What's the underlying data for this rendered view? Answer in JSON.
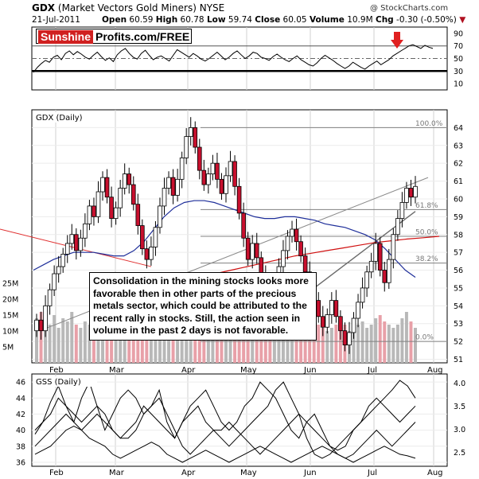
{
  "header": {
    "symbol": "GDX",
    "name": "(Market Vectors Gold Miners)",
    "exchange": "NYSE",
    "date": "21-Jul-2011",
    "source": "@ StockCharts.com",
    "open_label": "Open",
    "open": "60.59",
    "high_label": "High",
    "high": "60.78",
    "low_label": "Low",
    "low": "59.74",
    "close_label": "Close",
    "close": "60.05",
    "volume_label": "Volume",
    "volume": "10.9M",
    "chg_label": "Chg",
    "chg": "-0.30 (-0.50%)"
  },
  "logo": {
    "red_part": "Sunshine",
    "black_part": "Profits.com/FREE"
  },
  "annotation": "Consolidation in the mining stocks looks more favorable then in other parts of the precious metals sector, which could be attributed to the recent rally in stocks. Still, the action seen in volume in the past 2 days is not favorable.",
  "colors": {
    "up": "#ffffff",
    "down": "#c8102e",
    "ma50": "#1f2f9a",
    "ma200": "#d01010",
    "trend_red": "#e03030",
    "volume": "#b8b8b8",
    "volume_down": "#e8a0a8",
    "fib": "#808080"
  },
  "chart_data": [
    {
      "panel": "rsi",
      "type": "line",
      "ylim": [
        0,
        100
      ],
      "y_ticks": [
        10,
        30,
        50,
        70,
        90
      ],
      "reference_lines": [
        30,
        50,
        70
      ],
      "values": [
        28,
        36,
        42,
        47,
        44,
        52,
        55,
        48,
        58,
        62,
        56,
        61,
        57,
        52,
        49,
        55,
        60,
        53,
        47,
        51,
        45,
        56,
        62,
        66,
        58,
        52,
        49,
        58,
        63,
        55,
        48,
        52,
        54,
        50,
        46,
        55,
        64,
        60,
        56,
        52,
        58,
        54,
        49,
        46,
        50,
        55,
        60,
        54,
        48,
        52,
        58,
        62,
        56,
        50,
        54,
        60,
        58,
        52,
        50,
        47,
        53,
        57,
        52,
        48,
        45,
        50,
        54,
        48,
        44,
        40,
        38,
        43,
        50,
        55,
        51,
        47,
        42,
        38,
        34,
        38,
        44,
        40,
        36,
        33,
        38,
        42,
        46,
        40,
        44,
        48,
        54,
        58,
        62,
        66,
        70,
        72,
        69,
        66,
        71,
        68,
        66
      ]
    },
    {
      "panel": "price",
      "title": "GDX (Daily)",
      "type": "candlestick",
      "ylim": [
        50.8,
        65
      ],
      "y_ticks": [
        51,
        52,
        53,
        54,
        55,
        56,
        57,
        58,
        59,
        60,
        61,
        62,
        63,
        64
      ],
      "x_labels": [
        "Feb",
        "Mar",
        "Apr",
        "May",
        "Jun",
        "Jul",
        "Aug"
      ],
      "fib_levels": [
        {
          "label": "100.0%",
          "value": 64.0
        },
        {
          "label": "61.8%",
          "value": 59.4
        },
        {
          "label": "50.0%",
          "value": 57.9
        },
        {
          "label": "38.2%",
          "value": 56.4
        },
        {
          "label": "0.0%",
          "value": 52.0
        }
      ],
      "close": [
        53.2,
        52.6,
        54.0,
        54.9,
        55.8,
        56.2,
        56.9,
        57.5,
        58.0,
        57.1,
        57.8,
        58.6,
        59.6,
        59.0,
        60.4,
        61.2,
        60.1,
        58.9,
        59.5,
        60.6,
        61.4,
        60.8,
        59.7,
        58.5,
        57.2,
        56.6,
        57.3,
        58.4,
        59.6,
        60.6,
        61.2,
        60.2,
        61.1,
        62.3,
        63.5,
        64.0,
        62.9,
        61.6,
        60.8,
        61.4,
        62.0,
        61.1,
        60.3,
        61.3,
        62.1,
        60.7,
        59.2,
        57.8,
        56.6,
        57.5,
        56.7,
        55.8,
        55.1,
        54.6,
        55.4,
        56.2,
        57.1,
        57.9,
        58.3,
        57.6,
        56.8,
        55.9,
        55.1,
        54.3,
        53.4,
        52.8,
        53.5,
        54.3,
        53.4,
        52.6,
        51.8,
        52.5,
        53.3,
        54.2,
        55.0,
        55.9,
        56.5,
        57.5,
        56.0,
        55.3,
        56.6,
        58.0,
        58.9,
        59.8,
        60.6,
        60.1,
        60.7
      ],
      "ma50": [
        56.0,
        56.3,
        56.6,
        56.8,
        57.0,
        57.0,
        57.0,
        56.9,
        56.8,
        56.8,
        57.1,
        57.6,
        58.3,
        59.0,
        59.5,
        59.8,
        59.9,
        59.9,
        59.8,
        59.6,
        59.4,
        59.2,
        59.0,
        58.9,
        58.9,
        59.0,
        59.0,
        58.9,
        58.8,
        58.6,
        58.5,
        58.4,
        58.2,
        58.0,
        57.7,
        57.2,
        56.6,
        56.0,
        55.6
      ],
      "ma200": [
        55.0,
        55.2,
        55.4,
        55.6,
        55.8,
        56.0,
        56.2,
        56.4,
        56.6,
        56.8,
        56.95,
        57.1,
        57.25,
        57.4,
        57.55,
        57.65,
        57.75,
        57.82,
        57.9
      ],
      "volume_ylim": [
        0,
        30
      ],
      "volume_ticks": [
        {
          "label": "5M",
          "value": 5
        },
        {
          "label": "10M",
          "value": 10
        },
        {
          "label": "15M",
          "value": 15
        },
        {
          "label": "20M",
          "value": 20
        },
        {
          "label": "25M",
          "value": 25
        }
      ],
      "volume": [
        14,
        16,
        13,
        12,
        15,
        11,
        14,
        13,
        16,
        12,
        11,
        13,
        12,
        10,
        11,
        14,
        12,
        13,
        11,
        10,
        12,
        11,
        13,
        12,
        14,
        11,
        10,
        12,
        13,
        12,
        11,
        14,
        12,
        13,
        15,
        11,
        12,
        13,
        10,
        12,
        11,
        12,
        13,
        12,
        14,
        11,
        10,
        12,
        11,
        10,
        12,
        11,
        9,
        10,
        11,
        12,
        10,
        11,
        12,
        11,
        10,
        11,
        12,
        13,
        12,
        11,
        10,
        11,
        12,
        13,
        12,
        10,
        11,
        12,
        13,
        11,
        12,
        14,
        15,
        13,
        12,
        11,
        12,
        14,
        16,
        13,
        11
      ]
    },
    {
      "panel": "gss",
      "title": "GSS (Daily)",
      "type": "line",
      "ylim_left": [
        35.5,
        47
      ],
      "y_ticks_left": [
        36,
        38,
        40,
        42,
        44,
        46
      ],
      "ylim_right": [
        2.2,
        4.2
      ],
      "y_ticks_right": [
        2.5,
        3.0,
        3.5,
        4.0
      ],
      "series": [
        {
          "values": [
            39.5,
            41,
            43.5,
            45.5,
            43,
            41,
            44,
            46,
            43,
            40,
            42,
            44,
            45,
            44,
            42,
            43,
            45,
            41,
            39,
            41,
            43,
            44,
            45,
            43,
            41,
            40,
            41,
            43,
            44,
            46,
            45,
            44,
            42,
            40,
            39,
            41,
            42,
            40,
            38,
            37.5,
            38,
            40,
            41,
            42,
            43,
            44,
            45,
            46.2,
            45.5,
            44
          ]
        },
        {
          "values": [
            40,
            41,
            42,
            44,
            43,
            42,
            41,
            42,
            43,
            42,
            40,
            39,
            40,
            41,
            43,
            42,
            41,
            40,
            39,
            41,
            42,
            43,
            41,
            40,
            39,
            38,
            39,
            40,
            41,
            42,
            43,
            45,
            46,
            44,
            42,
            39,
            37,
            36.5,
            37,
            38,
            39,
            40,
            41,
            43,
            44,
            43,
            42,
            41,
            42,
            43
          ]
        },
        {
          "values": [
            38,
            39,
            40,
            41,
            42,
            41,
            40,
            41,
            42,
            41,
            40,
            39,
            39,
            40,
            42,
            43,
            44,
            42,
            40,
            38,
            37,
            38,
            39,
            40,
            40,
            41,
            40,
            39,
            38,
            37,
            38,
            39,
            40,
            41,
            42,
            41,
            40,
            39,
            38,
            37,
            36.5,
            37,
            38,
            39,
            40,
            39,
            38,
            39,
            40,
            41
          ]
        },
        {
          "values": [
            37,
            37.5,
            38,
            39,
            40,
            40.5,
            40,
            39,
            38.5,
            38,
            37,
            36.5,
            37,
            37.5,
            38,
            38.5,
            38,
            37,
            36.5,
            36,
            36.5,
            37,
            37.5,
            37,
            36.5,
            36,
            36.5,
            37,
            37.5,
            38,
            37.5,
            37,
            36.5,
            36,
            36.5,
            37,
            37.5,
            38,
            37.5,
            37,
            36.5,
            36,
            36.5,
            37,
            37.5,
            38,
            37.5,
            37,
            36.8,
            36.5
          ]
        }
      ],
      "x_labels": [
        "Feb",
        "Mar",
        "Apr",
        "May",
        "Jun",
        "Jul",
        "Aug"
      ]
    }
  ]
}
